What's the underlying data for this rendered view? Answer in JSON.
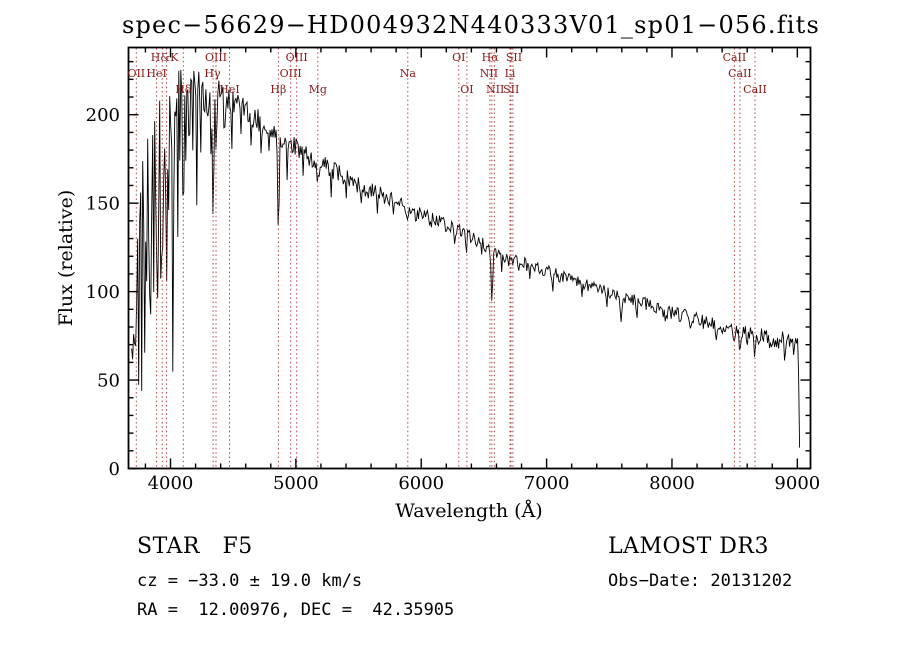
{
  "title": "spec−56629−HD004932N440333V01_sp01−056.fits",
  "annotations": {
    "class_label": "STAR   F5",
    "survey": "LAMOST DR3",
    "cz": "cz = −33.0 ± 19.0 km/s",
    "obs_date": "Obs−Date: 20131202",
    "coords": "RA =  12.00976, DEC =  42.35905"
  },
  "chart_data": {
    "type": "line",
    "title": "spec−56629−HD004932N440333V01_sp01−056.fits",
    "xlabel": "Wavelength (Å)",
    "ylabel": "Flux (relative)",
    "xlim": [
      3665,
      9105
    ],
    "ylim": [
      0,
      238
    ],
    "xticks": [
      4000,
      5000,
      6000,
      7000,
      8000,
      9000
    ],
    "yticks": [
      0,
      50,
      100,
      150,
      200
    ],
    "x_minor_step": 200,
    "y_minor_step": 10,
    "grid": false,
    "legend": "none",
    "line_color": "#000000",
    "marker_color": "#b04040",
    "label_color": "#8b1a1a",
    "sample_start": 3690,
    "sample_end": 9018,
    "sample_step": 8,
    "noise_seed": 20131202,
    "continuum": [
      [
        3690,
        150
      ],
      [
        3710,
        170
      ],
      [
        3730,
        178
      ],
      [
        3760,
        188
      ],
      [
        3800,
        196
      ],
      [
        3850,
        201
      ],
      [
        3900,
        206
      ],
      [
        3950,
        213
      ],
      [
        4000,
        220
      ],
      [
        4060,
        224
      ],
      [
        4120,
        223
      ],
      [
        4200,
        220
      ],
      [
        4300,
        216
      ],
      [
        4400,
        211
      ],
      [
        4500,
        207
      ],
      [
        4600,
        202
      ],
      [
        4700,
        197
      ],
      [
        4800,
        192
      ],
      [
        4900,
        186
      ],
      [
        5000,
        181
      ],
      [
        5100,
        176
      ],
      [
        5200,
        172
      ],
      [
        5300,
        168
      ],
      [
        5400,
        164
      ],
      [
        5500,
        160
      ],
      [
        5600,
        157
      ],
      [
        5700,
        154
      ],
      [
        5800,
        151
      ],
      [
        5900,
        147
      ],
      [
        6000,
        143
      ],
      [
        6100,
        140
      ],
      [
        6200,
        138
      ],
      [
        6300,
        134
      ],
      [
        6400,
        131
      ],
      [
        6500,
        127
      ],
      [
        6600,
        122
      ],
      [
        6700,
        118
      ],
      [
        6800,
        116
      ],
      [
        6900,
        114
      ],
      [
        7000,
        112
      ],
      [
        7100,
        109
      ],
      [
        7200,
        107
      ],
      [
        7300,
        104
      ],
      [
        7400,
        102
      ],
      [
        7500,
        99
      ],
      [
        7600,
        97
      ],
      [
        7700,
        95
      ],
      [
        7800,
        93
      ],
      [
        7900,
        90
      ],
      [
        8000,
        88
      ],
      [
        8100,
        86
      ],
      [
        8200,
        84
      ],
      [
        8300,
        82
      ],
      [
        8400,
        80
      ],
      [
        8500,
        78
      ],
      [
        8600,
        76
      ],
      [
        8700,
        75
      ],
      [
        8800,
        73
      ],
      [
        8900,
        72
      ],
      [
        8960,
        74
      ],
      [
        9000,
        75
      ],
      [
        9008,
        70
      ],
      [
        9016,
        6
      ]
    ],
    "noise_amp": [
      [
        3690,
        20
      ],
      [
        3780,
        16
      ],
      [
        3900,
        13
      ],
      [
        4000,
        11
      ],
      [
        4200,
        9
      ],
      [
        4500,
        7
      ],
      [
        5000,
        6
      ],
      [
        5500,
        5
      ],
      [
        6000,
        4.5
      ],
      [
        6500,
        4
      ],
      [
        7000,
        3.5
      ],
      [
        7500,
        3.5
      ],
      [
        8000,
        4
      ],
      [
        8500,
        4.5
      ],
      [
        9000,
        5.5
      ],
      [
        9020,
        6
      ]
    ],
    "features": [
      [
        3694,
        130,
        4
      ],
      [
        3706,
        70,
        3
      ],
      [
        3718,
        150,
        4
      ],
      [
        3731,
        80,
        3
      ],
      [
        3744,
        170,
        4
      ],
      [
        3757,
        60,
        3
      ],
      [
        3770,
        140,
        4
      ],
      [
        3784,
        70,
        3
      ],
      [
        3797,
        160,
        4
      ],
      [
        3811,
        85,
        3
      ],
      [
        3825,
        55,
        3
      ],
      [
        3838,
        175,
        4
      ],
      [
        3852,
        75,
        3
      ],
      [
        3866,
        110,
        3
      ],
      [
        3880,
        60,
        3
      ],
      [
        3894,
        160,
        4
      ],
      [
        3908,
        70,
        3
      ],
      [
        3922,
        95,
        3
      ],
      [
        3934,
        115,
        6
      ],
      [
        3950,
        80,
        3
      ],
      [
        3969,
        110,
        6
      ],
      [
        3984,
        100,
        3
      ],
      [
        4006,
        60,
        3
      ],
      [
        4020,
        180,
        4
      ],
      [
        4038,
        70,
        3
      ],
      [
        4056,
        110,
        3
      ],
      [
        4075,
        55,
        3
      ],
      [
        4102,
        80,
        6
      ],
      [
        4125,
        65,
        3
      ],
      [
        4150,
        85,
        3
      ],
      [
        4178,
        50,
        3
      ],
      [
        4210,
        65,
        3
      ],
      [
        4240,
        45,
        3
      ],
      [
        4270,
        55,
        3
      ],
      [
        4300,
        18,
        8
      ],
      [
        4320,
        40,
        3
      ],
      [
        4340,
        72,
        6
      ],
      [
        4365,
        45,
        3
      ],
      [
        4430,
        35,
        3
      ],
      [
        4490,
        28,
        3
      ],
      [
        4560,
        24,
        3
      ],
      [
        4640,
        20,
        3
      ],
      [
        4720,
        22,
        3
      ],
      [
        4790,
        18,
        3
      ],
      [
        4861,
        58,
        6
      ],
      [
        4930,
        18,
        3
      ],
      [
        5060,
        14,
        3
      ],
      [
        5175,
        13,
        9
      ],
      [
        5280,
        16,
        3
      ],
      [
        5400,
        13,
        3
      ],
      [
        5520,
        11,
        3
      ],
      [
        5650,
        13,
        3
      ],
      [
        5780,
        10,
        3
      ],
      [
        5893,
        12,
        6
      ],
      [
        5960,
        11,
        3
      ],
      [
        6080,
        10,
        3
      ],
      [
        6270,
        12,
        3
      ],
      [
        6360,
        9,
        3
      ],
      [
        6480,
        10,
        3
      ],
      [
        6563,
        30,
        6
      ],
      [
        6640,
        9,
        3
      ],
      [
        6780,
        9,
        3
      ],
      [
        6867,
        10,
        5
      ],
      [
        7050,
        10,
        4
      ],
      [
        7280,
        9,
        4
      ],
      [
        7480,
        9,
        4
      ],
      [
        7594,
        12,
        6
      ],
      [
        7720,
        10,
        4
      ],
      [
        7950,
        9,
        4
      ],
      [
        8150,
        8,
        4
      ],
      [
        8350,
        9,
        4
      ],
      [
        8498,
        8,
        6
      ],
      [
        8542,
        12,
        7
      ],
      [
        8600,
        9,
        4
      ],
      [
        8662,
        10,
        7
      ],
      [
        8780,
        10,
        4
      ],
      [
        8900,
        11,
        4
      ],
      [
        8970,
        10,
        4
      ]
    ],
    "marker_wavelengths": [
      3727,
      3889,
      3934,
      3969,
      4102,
      4340,
      4363,
      4471,
      4861,
      4959,
      5007,
      5175,
      5893,
      6300,
      6364,
      6548,
      6563,
      6583,
      6708,
      6716,
      6731,
      8498,
      8542,
      8662
    ],
    "line_labels": [
      {
        "text": "H&K",
        "wl": 3952,
        "row": 0
      },
      {
        "text": "OIII",
        "wl": 4363,
        "row": 0
      },
      {
        "text": "OIII",
        "wl": 5007,
        "row": 0
      },
      {
        "text": "OI",
        "wl": 6300,
        "row": 0
      },
      {
        "text": "Hα",
        "wl": 6550,
        "row": 0
      },
      {
        "text": "SII",
        "wl": 6740,
        "row": 0
      },
      {
        "text": "CaII",
        "wl": 8498,
        "row": 0
      },
      {
        "text": "OII",
        "wl": 3727,
        "row": 1
      },
      {
        "text": "HeI",
        "wl": 3889,
        "row": 1
      },
      {
        "text": "Hγ",
        "wl": 4335,
        "row": 1
      },
      {
        "text": "OIII",
        "wl": 4959,
        "row": 1
      },
      {
        "text": "Na",
        "wl": 5893,
        "row": 1
      },
      {
        "text": "NII",
        "wl": 6540,
        "row": 1
      },
      {
        "text": "Li",
        "wl": 6708,
        "row": 1
      },
      {
        "text": "CaII",
        "wl": 8542,
        "row": 1
      },
      {
        "text": "Hδ",
        "wl": 4102,
        "row": 2
      },
      {
        "text": "HeI",
        "wl": 4471,
        "row": 2
      },
      {
        "text": "Hβ",
        "wl": 4861,
        "row": 2
      },
      {
        "text": "Mg",
        "wl": 5175,
        "row": 2
      },
      {
        "text": "OI",
        "wl": 6364,
        "row": 2
      },
      {
        "text": "NII",
        "wl": 6590,
        "row": 2
      },
      {
        "text": "SII",
        "wl": 6718,
        "row": 2
      },
      {
        "text": "CaII",
        "wl": 8662,
        "row": 2
      }
    ]
  }
}
